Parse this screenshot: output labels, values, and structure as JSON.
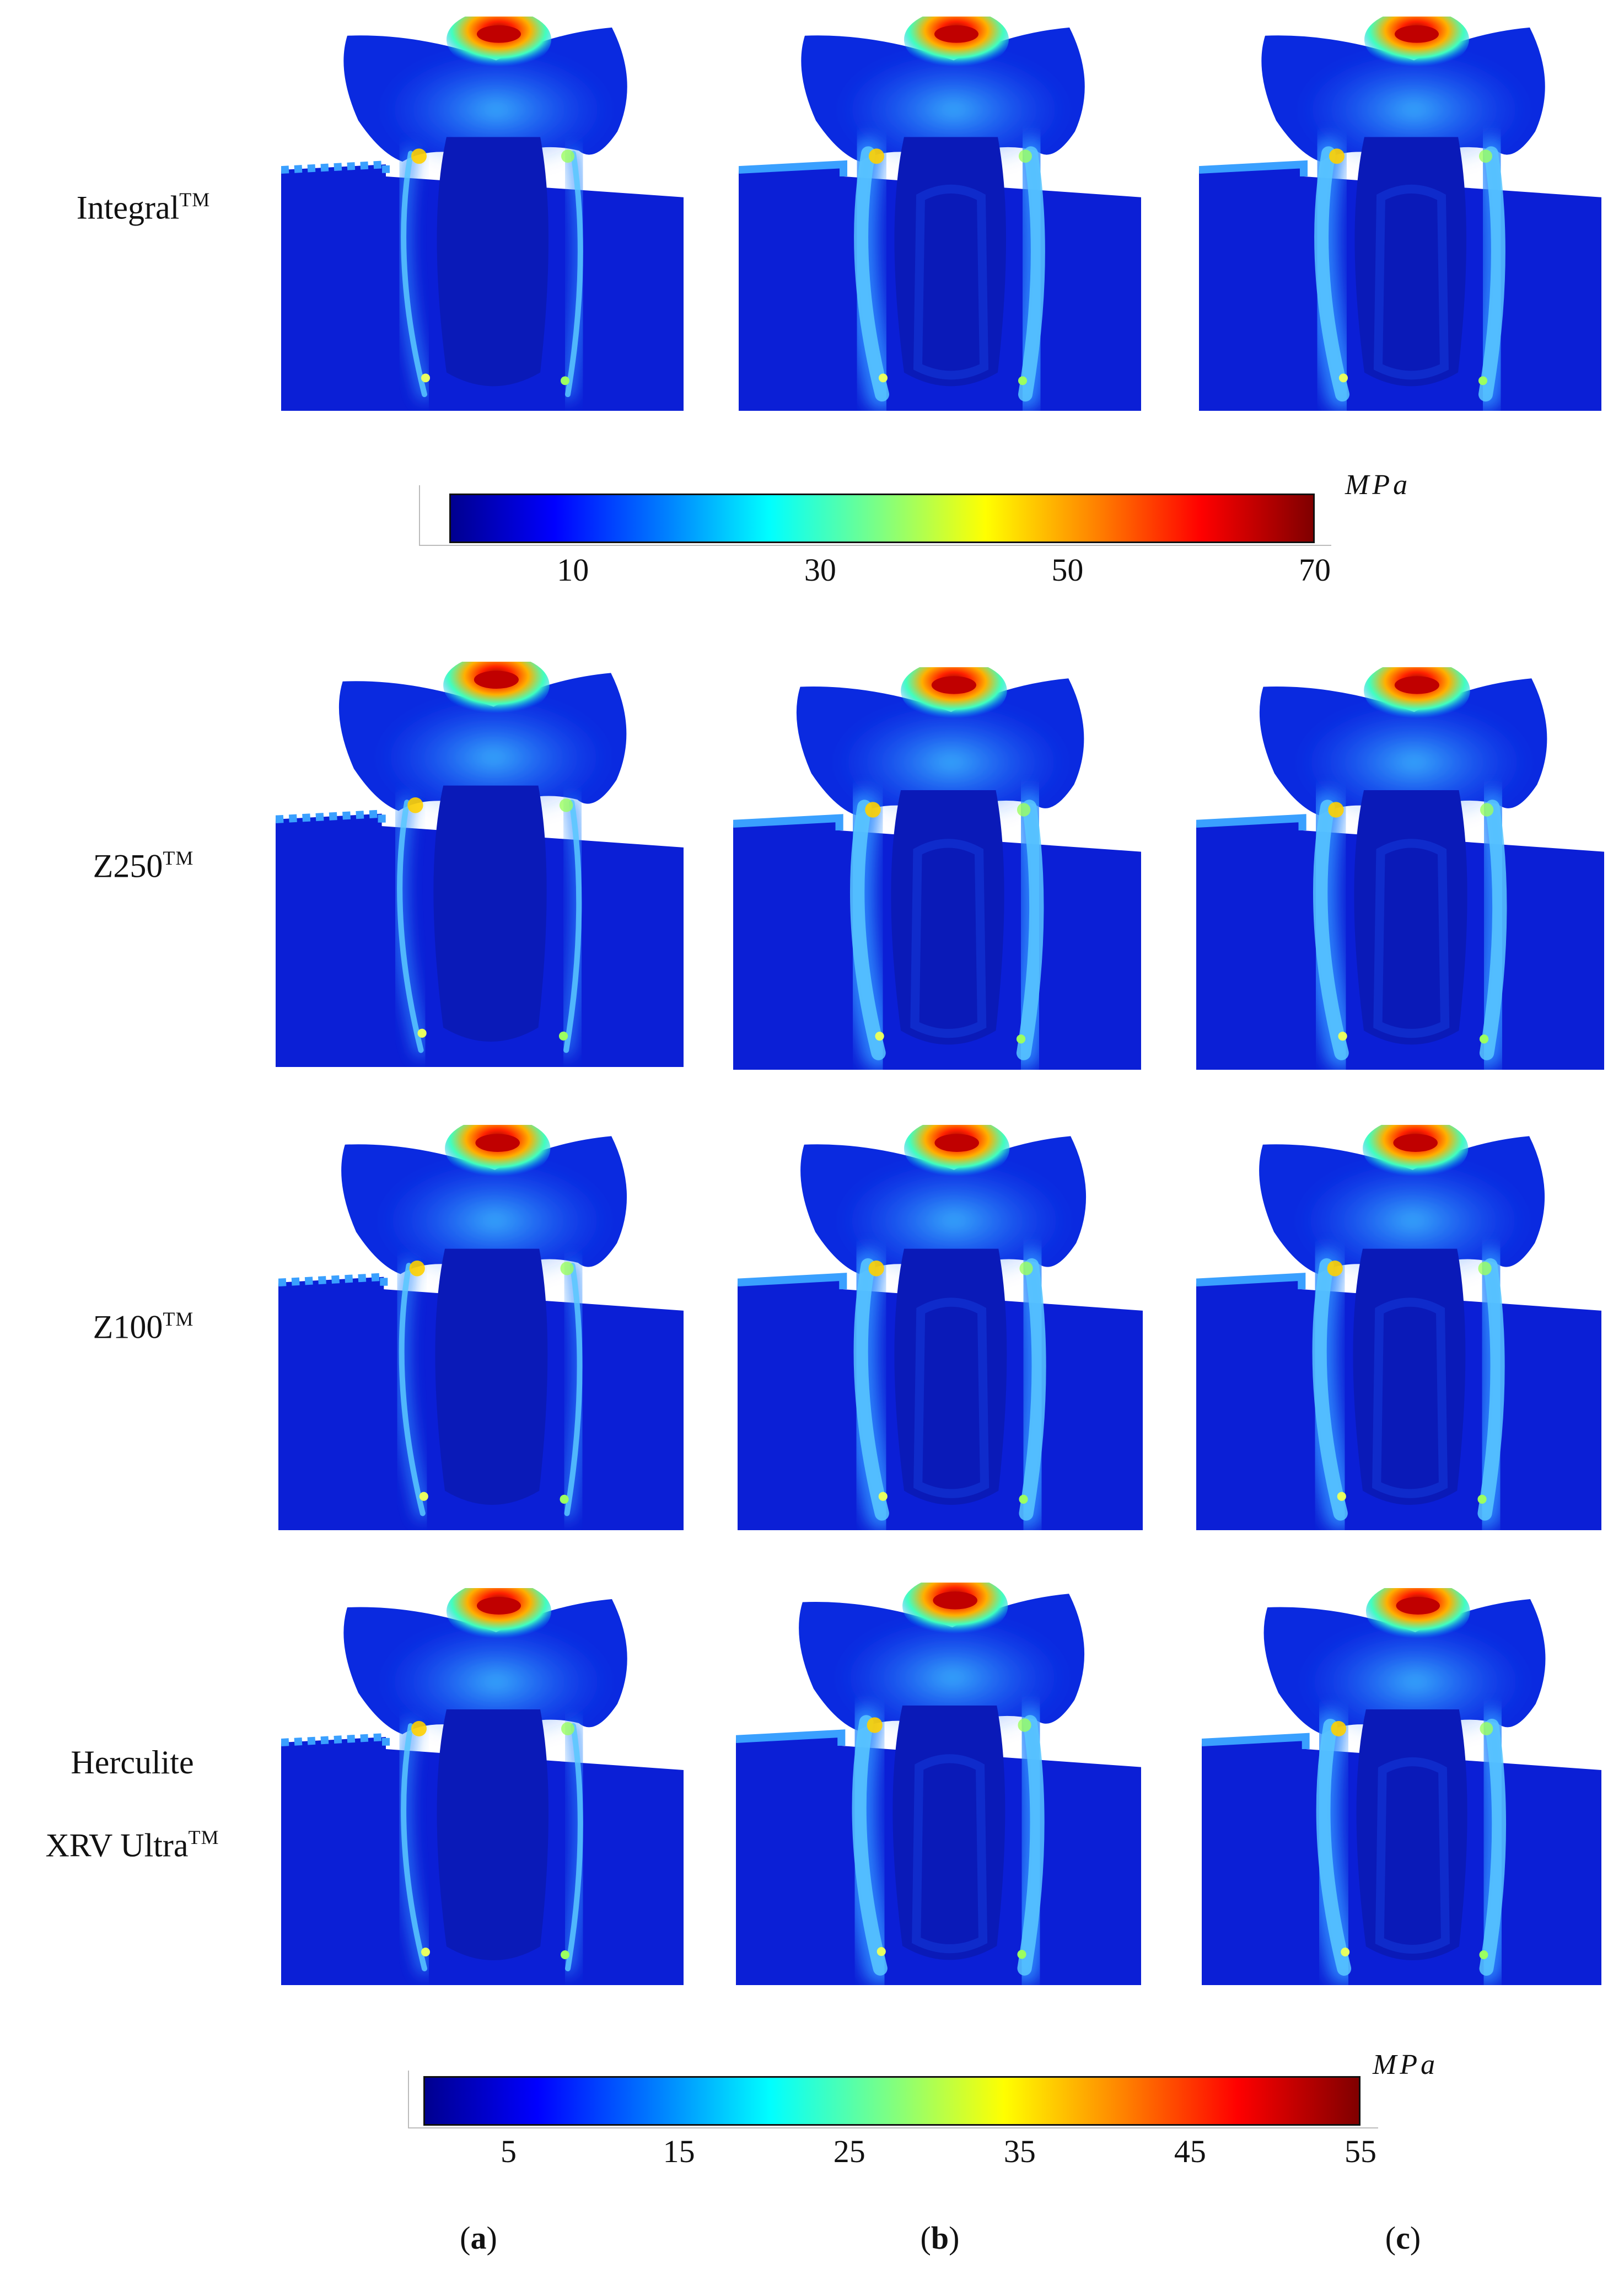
{
  "rows": [
    {
      "name": "Integral",
      "suffix": "TM"
    },
    {
      "name": "Z250",
      "suffix": "TM"
    },
    {
      "name": "Z100",
      "suffix": "TM"
    },
    {
      "line1": "Herculite",
      "name": "XRV Ultra",
      "suffix": "TM"
    }
  ],
  "colorbar_top": {
    "unit": "MPa",
    "min": 0,
    "max": 70,
    "ticks": [
      "10",
      "30",
      "50",
      "70"
    ],
    "tick_values": [
      10,
      30,
      50,
      70
    ]
  },
  "colorbar_bottom": {
    "unit": "MPa",
    "min": 0,
    "max": 55,
    "ticks": [
      "5",
      "15",
      "25",
      "35",
      "45",
      "55"
    ],
    "tick_values": [
      5,
      15,
      25,
      35,
      45,
      55
    ]
  },
  "columns": [
    {
      "open": "(",
      "letter": "a",
      "close": ")"
    },
    {
      "open": "(",
      "letter": "b",
      "close": ")"
    },
    {
      "open": "(",
      "letter": "c",
      "close": ")"
    }
  ],
  "colormap": "jet"
}
